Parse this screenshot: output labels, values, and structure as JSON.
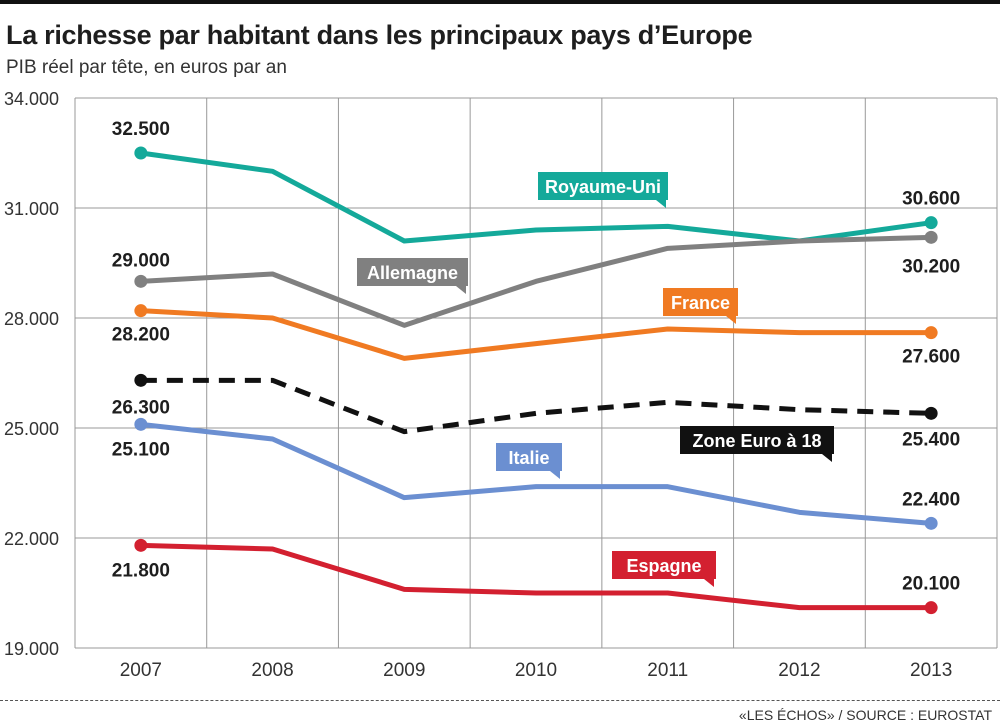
{
  "chart_data": {
    "type": "line",
    "title": "La richesse par habitant dans les principaux pays d’Europe",
    "subtitle": "PIB réel par tête, en euros par an",
    "xlabel": "",
    "ylabel": "",
    "categories": [
      "2007",
      "2008",
      "2009",
      "2010",
      "2011",
      "2012",
      "2013"
    ],
    "ylim": [
      19000,
      34000
    ],
    "yticks": [
      19000,
      22000,
      25000,
      28000,
      31000,
      34000
    ],
    "ytick_labels": [
      "19.000",
      "22.000",
      "25.000",
      "28.000",
      "31.000",
      "34.000"
    ],
    "grid": true,
    "legend": "inline-callouts",
    "series": [
      {
        "name": "Royaume-Uni",
        "color": "#14a99a",
        "dashed": false,
        "values": [
          32500,
          32000,
          30100,
          30400,
          30500,
          30100,
          30600
        ],
        "start_label": "32.500",
        "end_label": "30.600"
      },
      {
        "name": "Allemagne",
        "color": "#808080",
        "dashed": false,
        "values": [
          29000,
          29200,
          27800,
          29000,
          29900,
          30100,
          30200
        ],
        "start_label": "29.000",
        "end_label": "30.200"
      },
      {
        "name": "France",
        "color": "#f07a22",
        "dashed": false,
        "values": [
          28200,
          28000,
          26900,
          27300,
          27700,
          27600,
          27600
        ],
        "start_label": "28.200",
        "end_label": "27.600"
      },
      {
        "name": "Zone Euro à 18",
        "color": "#111111",
        "dashed": true,
        "values": [
          26300,
          26300,
          24900,
          25400,
          25700,
          25500,
          25400
        ],
        "start_label": "26.300",
        "end_label": "25.400"
      },
      {
        "name": "Italie",
        "color": "#6b8fd1",
        "dashed": false,
        "values": [
          25100,
          24700,
          23100,
          23400,
          23400,
          22700,
          22400
        ],
        "start_label": "25.100",
        "end_label": "22.400"
      },
      {
        "name": "Espagne",
        "color": "#d32030",
        "dashed": false,
        "values": [
          21800,
          21700,
          20600,
          20500,
          20500,
          20100,
          20100
        ],
        "start_label": "21.800",
        "end_label": "20.100"
      }
    ]
  },
  "footer": {
    "source": "«LES ÉCHOS» / SOURCE : EUROSTAT"
  }
}
